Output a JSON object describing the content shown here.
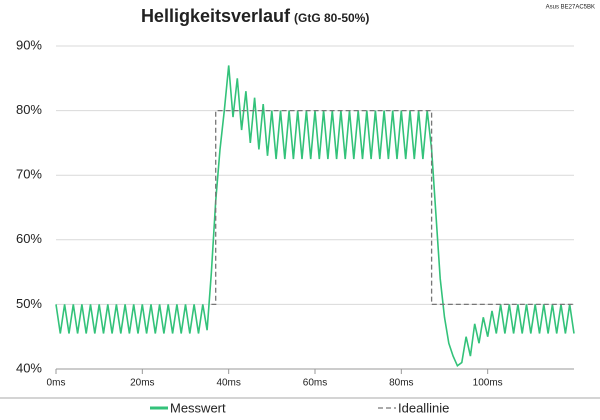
{
  "chart_data": {
    "type": "line",
    "title": "Helligkeitsverlauf",
    "subtitle": "(GtG 80-50%)",
    "annotation": "Asus BE27AC5BK",
    "xlim": [
      0,
      120
    ],
    "xticks": [
      {
        "value": 0,
        "label": "0ms"
      },
      {
        "value": 20,
        "label": "20ms"
      },
      {
        "value": 40,
        "label": "40ms"
      },
      {
        "value": 60,
        "label": "60ms"
      },
      {
        "value": 80,
        "label": "80ms"
      },
      {
        "value": 100,
        "label": "100ms"
      }
    ],
    "ylim": [
      40,
      90
    ],
    "yticks": [
      {
        "value": 40,
        "label": "40%"
      },
      {
        "value": 50,
        "label": "50%"
      },
      {
        "value": 60,
        "label": "60%"
      },
      {
        "value": 70,
        "label": "70%"
      },
      {
        "value": 80,
        "label": "80%"
      },
      {
        "value": 90,
        "label": "90%"
      }
    ],
    "grid": true,
    "legend": "bottom",
    "series": [
      {
        "name": "Messwert",
        "color": "#33c27a",
        "dashed": false,
        "x": [
          0,
          1,
          2,
          3,
          4,
          5,
          6,
          7,
          8,
          9,
          10,
          11,
          12,
          13,
          14,
          15,
          16,
          17,
          18,
          19,
          20,
          21,
          22,
          23,
          24,
          25,
          26,
          27,
          28,
          29,
          30,
          31,
          32,
          33,
          34,
          35,
          36,
          37,
          38,
          39,
          40,
          41,
          42,
          43,
          44,
          45,
          46,
          47,
          48,
          49,
          50,
          51,
          52,
          53,
          54,
          55,
          56,
          57,
          58,
          59,
          60,
          61,
          62,
          63,
          64,
          65,
          66,
          67,
          68,
          69,
          70,
          71,
          72,
          73,
          74,
          75,
          76,
          77,
          78,
          79,
          80,
          81,
          82,
          83,
          84,
          85,
          86,
          87,
          88,
          89,
          90,
          91,
          92,
          93,
          94,
          95,
          96,
          97,
          98,
          99,
          100,
          101,
          102,
          103,
          104,
          105,
          106,
          107,
          108,
          109,
          110,
          111,
          112,
          113,
          114,
          115,
          116,
          117,
          118,
          119,
          120
        ],
        "values": [
          50,
          45.5,
          50,
          45.5,
          50,
          45.5,
          50,
          45.5,
          50,
          45.5,
          50,
          45.5,
          50,
          45.5,
          50,
          45.5,
          50,
          45.5,
          50,
          45.5,
          50,
          45.5,
          50,
          45.5,
          50,
          45.5,
          50,
          45.5,
          50,
          45.5,
          50,
          45.5,
          50,
          45.5,
          50,
          46,
          55,
          66,
          74,
          80,
          87,
          79,
          85,
          77,
          83,
          75,
          82,
          74,
          81,
          73,
          80,
          72.5,
          80,
          72.5,
          80,
          72.5,
          80,
          72.5,
          80,
          72.5,
          80,
          72.5,
          80,
          72.5,
          80,
          72.5,
          80,
          72.5,
          80,
          72.5,
          80,
          72.5,
          80,
          72.5,
          80,
          72.5,
          80,
          72.5,
          80,
          72.5,
          80,
          72.5,
          80,
          72.5,
          80,
          72.5,
          80,
          74,
          64,
          54,
          48,
          44,
          42,
          40.5,
          41,
          45,
          42,
          47,
          44,
          48,
          45,
          49,
          45.5,
          50,
          45.5,
          50,
          45.5,
          50,
          45.5,
          50,
          45.5,
          50,
          45.5,
          50,
          45.5,
          50,
          45.5,
          50,
          45.5,
          50,
          45.5
        ]
      },
      {
        "name": "Ideallinie",
        "color": "#777777",
        "dashed": true,
        "x": [
          36,
          37,
          37,
          87,
          87,
          120
        ],
        "values": [
          50,
          50,
          80,
          80,
          50,
          50
        ]
      }
    ]
  }
}
